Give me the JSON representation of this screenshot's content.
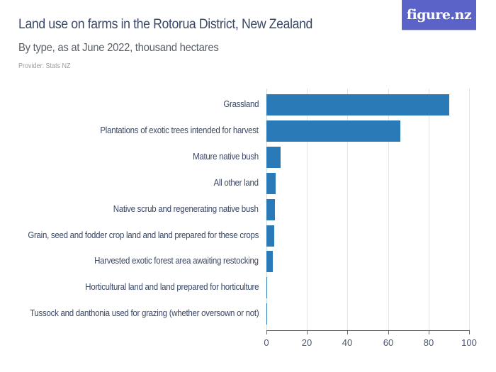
{
  "header": {
    "title": "Land use on farms in the Rotorua District, New Zealand",
    "subtitle": "By type, as at June 2022, thousand hectares",
    "provider": "Provider: Stats NZ",
    "logo": "figure.nz"
  },
  "colors": {
    "bar": "#2a7ab8",
    "title": "#3a4866",
    "logo_bg": "#5b63c9"
  },
  "chart_data": {
    "type": "bar",
    "orientation": "horizontal",
    "title": "Land use on farms in the Rotorua District, New Zealand",
    "subtitle": "By type, as at June 2022, thousand hectares",
    "xlabel": "",
    "ylabel": "",
    "xlim": [
      0,
      100
    ],
    "x_ticks": [
      "0",
      "20",
      "40",
      "60",
      "80",
      "100"
    ],
    "grid": true,
    "categories": [
      "Grassland",
      "Plantations of exotic trees intended for harvest",
      "Mature native bush",
      "All other land",
      "Native scrub and regenerating native bush",
      "Grain, seed and fodder crop land and land prepared for these crops",
      "Harvested exotic forest area awaiting restocking",
      "Horticultural land and land prepared for horticulture",
      "Tussock and danthonia used for grazing (whether oversown or not)"
    ],
    "values": [
      90.2,
      66.0,
      7.0,
      4.4,
      4.1,
      4.0,
      3.1,
      0.3,
      0.2
    ]
  }
}
